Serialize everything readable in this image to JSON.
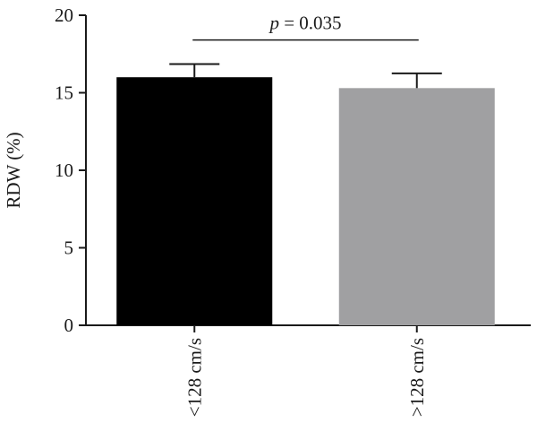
{
  "chart_data": {
    "type": "bar",
    "categories": [
      "<128 cm/s",
      ">128 cm/s"
    ],
    "values": [
      16.0,
      15.3
    ],
    "errors": [
      0.85,
      0.95
    ],
    "ylabel": "RDW (%)",
    "ylim": [
      0,
      20
    ],
    "yticks": [
      "0",
      "5",
      "10",
      "15",
      "20"
    ],
    "grid": false,
    "colors": [
      "#000000",
      "#a0a0a2"
    ],
    "significance": {
      "p_symbol": "p",
      "p_value_text": " = 0.035",
      "between": [
        0,
        1
      ],
      "level": 18.4
    }
  }
}
